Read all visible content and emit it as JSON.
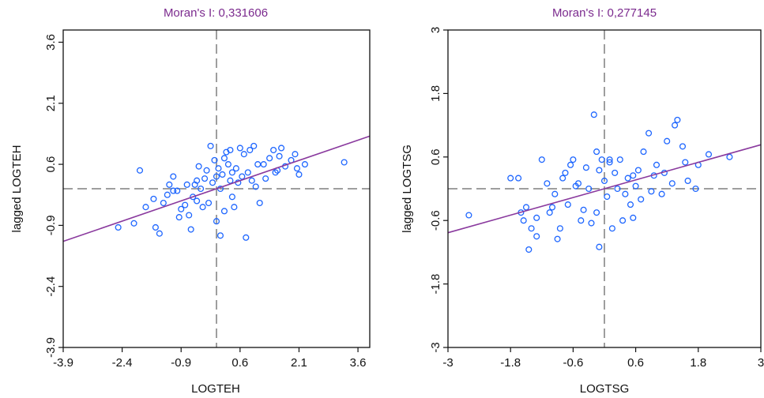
{
  "colors": {
    "title": "#7b2a8e",
    "points": "#1e66ff",
    "regression": "#8a3a9e",
    "mean_lines": "#7f7f7f",
    "frame": "#111111"
  },
  "chart_data": [
    {
      "type": "scatter",
      "title": "Moran's I: 0,331606",
      "xlabel": "LOGTEH",
      "ylabel": "lagged LOGTEH",
      "xlim": [
        -3.9,
        3.9
      ],
      "ylim": [
        -3.9,
        3.9
      ],
      "xticks": [
        "-3.9",
        "-2.4",
        "-0.9",
        "0.6",
        "2.1",
        "3.6"
      ],
      "yticks": [
        "-3.9",
        "-2.4",
        "-0.9",
        "0.6",
        "2.1",
        "3.6"
      ],
      "grid": false,
      "mean_lines": {
        "x": 0,
        "y": 0
      },
      "regression": {
        "slope": 0.3316,
        "intercept": 0
      },
      "points": [
        [
          -2.5,
          -0.95
        ],
        [
          -2.1,
          -0.85
        ],
        [
          -1.8,
          -0.45
        ],
        [
          -1.6,
          -0.25
        ],
        [
          -1.55,
          -0.95
        ],
        [
          -1.45,
          -1.1
        ],
        [
          -1.35,
          -0.35
        ],
        [
          -1.25,
          -0.15
        ],
        [
          -1.2,
          0.1
        ],
        [
          -1.1,
          0.3
        ],
        [
          -1.0,
          -0.05
        ],
        [
          -0.9,
          -0.5
        ],
        [
          -0.8,
          -0.4
        ],
        [
          -0.7,
          -0.65
        ],
        [
          -0.6,
          -0.2
        ],
        [
          -0.55,
          0.1
        ],
        [
          -0.5,
          -0.3
        ],
        [
          -0.45,
          0.55
        ],
        [
          -0.4,
          0.0
        ],
        [
          -0.3,
          0.25
        ],
        [
          -0.2,
          -0.35
        ],
        [
          -0.1,
          0.15
        ],
        [
          0.0,
          0.3
        ],
        [
          0.05,
          0.5
        ],
        [
          0.1,
          0.0
        ],
        [
          0.15,
          0.35
        ],
        [
          0.2,
          0.75
        ],
        [
          0.25,
          0.9
        ],
        [
          0.3,
          0.6
        ],
        [
          0.35,
          0.2
        ],
        [
          0.4,
          -0.2
        ],
        [
          0.5,
          0.5
        ],
        [
          0.6,
          1.0
        ],
        [
          0.7,
          0.85
        ],
        [
          0.8,
          0.4
        ],
        [
          0.9,
          0.2
        ],
        [
          1.0,
          0.05
        ],
        [
          1.1,
          -0.35
        ],
        [
          1.2,
          0.6
        ],
        [
          1.35,
          0.75
        ],
        [
          1.45,
          0.95
        ],
        [
          1.6,
          0.8
        ],
        [
          1.75,
          0.55
        ],
        [
          1.9,
          0.7
        ],
        [
          2.0,
          0.85
        ],
        [
          2.1,
          0.35
        ],
        [
          2.25,
          0.6
        ],
        [
          -0.95,
          -0.7
        ],
        [
          -0.75,
          0.1
        ],
        [
          -0.35,
          -0.45
        ],
        [
          -0.15,
          1.05
        ],
        [
          0.45,
          -0.45
        ],
        [
          0.55,
          0.15
        ],
        [
          0.65,
          0.3
        ],
        [
          0.85,
          0.95
        ],
        [
          1.05,
          0.6
        ],
        [
          1.25,
          0.25
        ],
        [
          1.5,
          0.4
        ],
        [
          1.65,
          1.0
        ],
        [
          2.05,
          0.5
        ],
        [
          3.25,
          0.65
        ],
        [
          0.0,
          -0.8
        ],
        [
          0.1,
          -1.15
        ],
        [
          0.75,
          -1.2
        ],
        [
          -0.65,
          -1.0
        ],
        [
          -1.95,
          0.45
        ],
        [
          -1.1,
          -0.05
        ],
        [
          -0.25,
          0.45
        ],
        [
          0.35,
          0.95
        ],
        [
          0.95,
          1.05
        ],
        [
          -0.05,
          0.7
        ],
        [
          0.2,
          -0.55
        ],
        [
          -0.5,
          0.2
        ],
        [
          0.4,
          0.4
        ],
        [
          1.55,
          0.45
        ]
      ]
    },
    {
      "type": "scatter",
      "title": "Moran's I: 0,277145",
      "xlabel": "LOGTSG",
      "ylabel": "lagged LOGTSG",
      "xlim": [
        -3,
        3
      ],
      "ylim": [
        -3,
        3
      ],
      "xticks": [
        "-3",
        "-1.8",
        "-0.6",
        "0.6",
        "1.8",
        "3"
      ],
      "yticks": [
        "-3",
        "-1.8",
        "-0.6",
        "0.6",
        "1.8",
        "3"
      ],
      "grid": false,
      "mean_lines": {
        "x": 0,
        "y": 0
      },
      "regression": {
        "slope": 0.2771,
        "intercept": 0
      },
      "points": [
        [
          -2.6,
          -0.5
        ],
        [
          -1.8,
          0.2
        ],
        [
          -1.65,
          0.2
        ],
        [
          -1.6,
          -0.45
        ],
        [
          -1.5,
          -0.35
        ],
        [
          -1.45,
          -1.15
        ],
        [
          -1.4,
          -0.75
        ],
        [
          -1.3,
          -0.9
        ],
        [
          -1.2,
          0.55
        ],
        [
          -1.1,
          0.1
        ],
        [
          -1.0,
          -0.35
        ],
        [
          -0.9,
          -0.95
        ],
        [
          -0.85,
          -0.75
        ],
        [
          -0.75,
          0.3
        ],
        [
          -0.7,
          -0.3
        ],
        [
          -0.6,
          0.55
        ],
        [
          -0.55,
          0.05
        ],
        [
          -0.45,
          -0.6
        ],
        [
          -0.35,
          0.4
        ],
        [
          -0.3,
          0.0
        ],
        [
          -0.25,
          -0.65
        ],
        [
          -0.2,
          1.4
        ],
        [
          -0.15,
          0.7
        ],
        [
          -0.1,
          0.35
        ],
        [
          -0.05,
          0.55
        ],
        [
          0.0,
          0.15
        ],
        [
          0.05,
          -0.15
        ],
        [
          0.1,
          0.5
        ],
        [
          0.15,
          -0.75
        ],
        [
          0.2,
          0.3
        ],
        [
          0.25,
          0.0
        ],
        [
          0.3,
          0.55
        ],
        [
          0.4,
          -0.1
        ],
        [
          0.5,
          -0.3
        ],
        [
          0.55,
          0.25
        ],
        [
          0.6,
          0.05
        ],
        [
          0.65,
          0.35
        ],
        [
          0.75,
          0.7
        ],
        [
          0.85,
          1.05
        ],
        [
          1.0,
          0.45
        ],
        [
          1.1,
          -0.1
        ],
        [
          1.2,
          0.9
        ],
        [
          1.35,
          1.2
        ],
        [
          1.5,
          0.8
        ],
        [
          1.6,
          0.15
        ],
        [
          1.75,
          0.0
        ],
        [
          2.0,
          0.65
        ],
        [
          2.4,
          0.6
        ],
        [
          -1.3,
          -0.55
        ],
        [
          -0.95,
          -0.1
        ],
        [
          -0.65,
          0.45
        ],
        [
          -0.4,
          -0.4
        ],
        [
          -0.1,
          -1.1
        ],
        [
          0.35,
          -0.6
        ],
        [
          0.45,
          0.2
        ],
        [
          0.7,
          -0.2
        ],
        [
          0.9,
          -0.05
        ],
        [
          1.15,
          0.3
        ],
        [
          1.4,
          1.3
        ],
        [
          1.55,
          0.5
        ],
        [
          1.8,
          0.45
        ],
        [
          -1.05,
          -0.45
        ],
        [
          -0.8,
          0.2
        ],
        [
          -0.5,
          0.1
        ],
        [
          0.1,
          0.55
        ],
        [
          0.95,
          0.25
        ],
        [
          0.55,
          -0.55
        ],
        [
          -1.55,
          -0.6
        ],
        [
          -0.15,
          -0.45
        ],
        [
          1.3,
          0.1
        ]
      ]
    }
  ]
}
